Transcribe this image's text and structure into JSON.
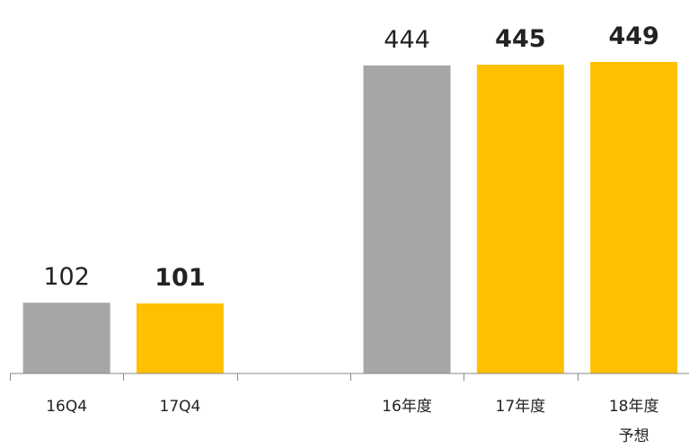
{
  "chart_data": {
    "type": "bar",
    "title": "",
    "xlabel": "",
    "ylabel": "",
    "ylim": [
      0,
      449
    ],
    "colors": {
      "previous": "#A6A6A6",
      "current": "#FFC000"
    },
    "bars": [
      {
        "category": "16Q4",
        "category_line2": "",
        "value": 102,
        "value_label": "102",
        "highlight": false
      },
      {
        "category": "17Q4",
        "category_line2": "",
        "value": 101,
        "value_label": "101",
        "highlight": true
      },
      {
        "category": "",
        "category_line2": "",
        "value": null,
        "value_label": "",
        "highlight": false
      },
      {
        "category": "16年度",
        "category_line2": "",
        "value": 444,
        "value_label": "444",
        "highlight": false
      },
      {
        "category": "17年度",
        "category_line2": "",
        "value": 445,
        "value_label": "445",
        "highlight": true
      },
      {
        "category": "18年度",
        "category_line2": "予想",
        "value": 449,
        "value_label": "449",
        "highlight": true
      }
    ]
  }
}
